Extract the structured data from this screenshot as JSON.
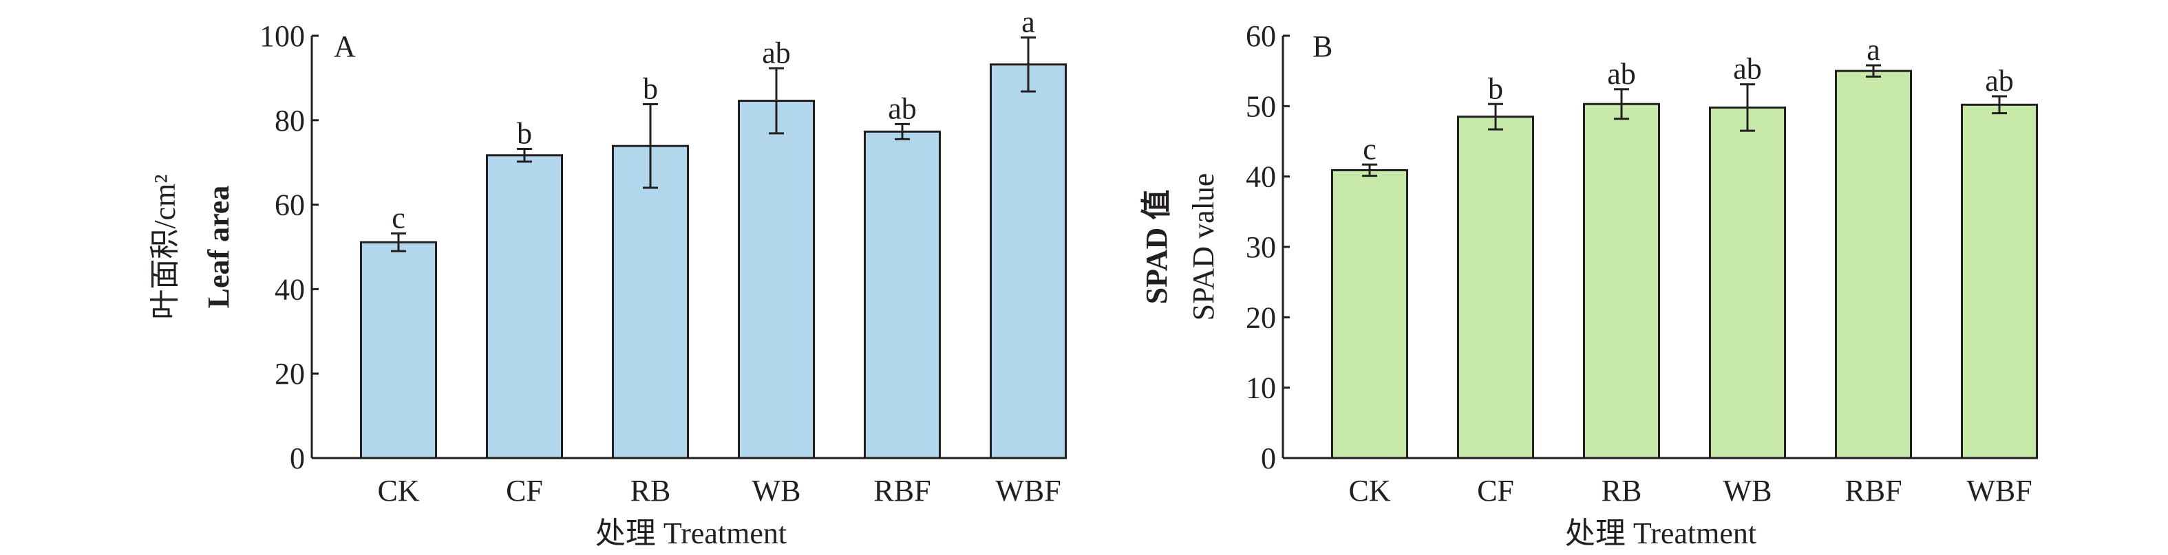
{
  "chart_data": [
    {
      "type": "bar",
      "panel_label": "A",
      "categories": [
        "CK",
        "CF",
        "RB",
        "WB",
        "RBF",
        "WBF"
      ],
      "values": [
        51.1,
        71.7,
        73.9,
        84.6,
        77.3,
        93.2
      ],
      "error": [
        2.1,
        1.5,
        9.9,
        7.7,
        1.8,
        6.4
      ],
      "significance": [
        "c",
        "b",
        "b",
        "ab",
        "ab",
        "a"
      ],
      "xlabel": "处理 Treatment",
      "ylabel_lines": [
        "叶面积/cm²",
        "Leaf area"
      ],
      "ylim": [
        0,
        100
      ],
      "yticks": [
        0,
        20,
        40,
        60,
        80,
        100
      ],
      "bar_color": "#b2d7ed",
      "grid": false
    },
    {
      "type": "bar",
      "panel_label": "B",
      "categories": [
        "CK",
        "CF",
        "RB",
        "WB",
        "RBF",
        "WBF"
      ],
      "values": [
        40.9,
        48.5,
        50.3,
        49.8,
        55.0,
        50.2
      ],
      "error": [
        0.8,
        1.8,
        2.1,
        3.3,
        0.8,
        1.2
      ],
      "significance": [
        "c",
        "b",
        "ab",
        "ab",
        "a",
        "ab"
      ],
      "xlabel": "处理 Treatment",
      "ylabel_lines": [
        "SPAD 值",
        "SPAD value"
      ],
      "ylim": [
        0,
        60
      ],
      "yticks": [
        0,
        10,
        20,
        30,
        40,
        50,
        60
      ],
      "bar_color": "#c6e8a9",
      "grid": false
    }
  ]
}
